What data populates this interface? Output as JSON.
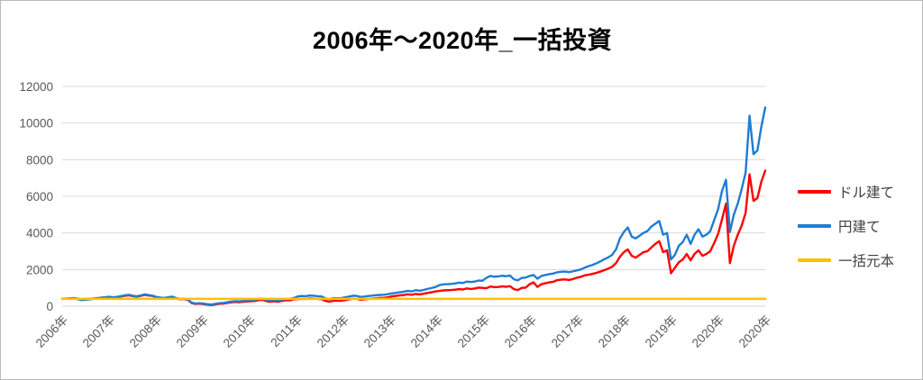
{
  "chart_data": {
    "type": "line",
    "title": "2006年〜2020年_一括投資",
    "xlabel": "",
    "ylabel": "",
    "ylim": [
      0,
      12000
    ],
    "yticks": [
      0,
      2000,
      4000,
      6000,
      8000,
      10000,
      12000
    ],
    "x_labels": [
      "2006年",
      "2007年",
      "2008年",
      "2009年",
      "2010年",
      "2011年",
      "2012年",
      "2013年",
      "2014年",
      "2015年",
      "2016年",
      "2017年",
      "2018年",
      "2019年",
      "2020年",
      "2020年"
    ],
    "grid": "horizontal",
    "legend_position": "right",
    "x_resolution": "monthly 2006-01 to 2020-12",
    "series": [
      {
        "name": "ドル建て",
        "color": "#FF0000",
        "width": 2.4,
        "values": [
          400,
          415,
          425,
          440,
          410,
          370,
          390,
          405,
          420,
          440,
          465,
          480,
          500,
          470,
          495,
          530,
          570,
          590,
          545,
          520,
          560,
          615,
          580,
          555,
          480,
          450,
          430,
          470,
          500,
          420,
          380,
          390,
          340,
          160,
          120,
          140,
          110,
          80,
          60,
          95,
          130,
          140,
          175,
          205,
          230,
          215,
          235,
          255,
          265,
          285,
          330,
          345,
          275,
          245,
          270,
          240,
          290,
          320,
          325,
          370,
          385,
          400,
          395,
          425,
          415,
          395,
          380,
          290,
          245,
          295,
          290,
          295,
          330,
          365,
          410,
          400,
          345,
          370,
          395,
          415,
          435,
          450,
          460,
          490,
          540,
          560,
          590,
          610,
          650,
          620,
          670,
          640,
          680,
          720,
          760,
          800,
          830,
          860,
          870,
          880,
          900,
          930,
          910,
          970,
          940,
          960,
          1010,
          1000,
          980,
          1070,
          1040,
          1050,
          1080,
          1060,
          1090,
          930,
          880,
          1000,
          1010,
          1200,
          1300,
          1050,
          1200,
          1250,
          1300,
          1330,
          1420,
          1450,
          1460,
          1430,
          1480,
          1550,
          1600,
          1680,
          1720,
          1760,
          1820,
          1890,
          1970,
          2050,
          2150,
          2350,
          2700,
          2950,
          3100,
          2750,
          2650,
          2800,
          2950,
          3000,
          3200,
          3400,
          3550,
          2950,
          3050,
          1800,
          2100,
          2400,
          2550,
          2850,
          2500,
          2850,
          3050,
          2750,
          2850,
          3000,
          3450,
          3950,
          4750,
          5600,
          2350,
          3300,
          3900,
          4400,
          5100,
          7200,
          5750,
          5900,
          6800,
          7400
        ]
      },
      {
        "name": "円建て",
        "color": "#1F7CD4",
        "width": 2.4,
        "values": [
          400,
          408,
          418,
          428,
          375,
          330,
          355,
          375,
          400,
          430,
          460,
          488,
          515,
          485,
          510,
          550,
          595,
          620,
          570,
          540,
          585,
          645,
          605,
          575,
          500,
          470,
          450,
          490,
          520,
          440,
          400,
          410,
          360,
          185,
          145,
          165,
          135,
          105,
          90,
          125,
          165,
          175,
          215,
          250,
          275,
          260,
          285,
          305,
          320,
          345,
          395,
          410,
          340,
          305,
          335,
          305,
          355,
          390,
          395,
          450,
          530,
          555,
          545,
          580,
          570,
          545,
          530,
          430,
          380,
          440,
          435,
          440,
          480,
          520,
          570,
          560,
          500,
          525,
          555,
          575,
          600,
          615,
          625,
          660,
          700,
          730,
          760,
          790,
          840,
          805,
          875,
          840,
          885,
          940,
          990,
          1040,
          1150,
          1190,
          1200,
          1215,
          1240,
          1285,
          1265,
          1340,
          1320,
          1340,
          1400,
          1390,
          1545,
          1650,
          1610,
          1625,
          1660,
          1635,
          1670,
          1470,
          1410,
          1545,
          1560,
          1650,
          1700,
          1500,
          1650,
          1700,
          1750,
          1780,
          1850,
          1880,
          1890,
          1860,
          1900,
          1950,
          2000,
          2100,
          2180,
          2250,
          2340,
          2440,
          2560,
          2660,
          2800,
          3100,
          3700,
          4050,
          4300,
          3800,
          3700,
          3850,
          4000,
          4100,
          4350,
          4500,
          4650,
          3900,
          4000,
          2550,
          2800,
          3300,
          3500,
          3900,
          3400,
          3900,
          4200,
          3800,
          3900,
          4100,
          4700,
          5300,
          6300,
          6900,
          4050,
          5000,
          5600,
          6400,
          7300,
          10400,
          8300,
          8500,
          9800,
          10850
        ]
      },
      {
        "name": "一括元本",
        "color": "#FFC000",
        "width": 2.6,
        "values": [
          400,
          400
        ]
      }
    ],
    "colors": {
      "gridline": "#d9d9d9",
      "axis_label": "#595959",
      "legend_text": "#404040",
      "title_text": "#000000"
    }
  }
}
